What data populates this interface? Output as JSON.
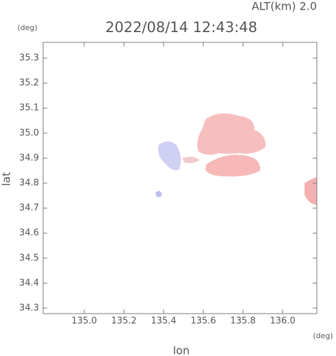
{
  "chart_data": {
    "type": "radar-map",
    "title": "2022/08/14 12:43:48",
    "annotation": "ALT(km) 2.0",
    "x_label": "lon",
    "y_label": "lat",
    "x_unit": "(deg)",
    "y_unit": "(deg)",
    "xlim": [
      134.793,
      136.172
    ],
    "ylim": [
      34.278,
      35.363
    ],
    "xticks": [
      {
        "value": 135,
        "label": "135.0"
      },
      135.2,
      135.4,
      135.6,
      135.8,
      {
        "value": 136,
        "label": "136.0"
      }
    ],
    "yticks": [
      34.3,
      34.4,
      34.5,
      34.6,
      34.7,
      34.8,
      34.9,
      {
        "value": 35,
        "label": "35.0"
      },
      35.1,
      35.2,
      35.3
    ]
  }
}
